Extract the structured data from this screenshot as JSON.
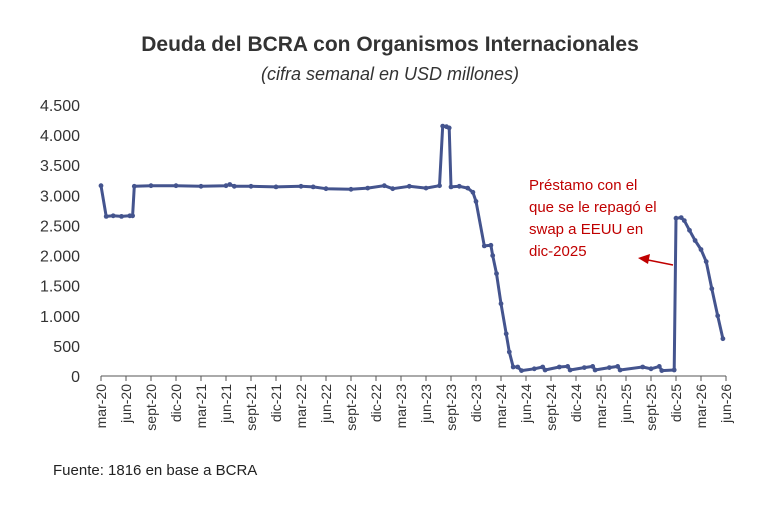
{
  "chart_data": {
    "type": "line",
    "title": "Deuda del BCRA con Organismos Internacionales",
    "subtitle": "(cifra semanal en USD millones)",
    "source": "Fuente: 1816 en base a BCRA",
    "ylim": [
      0,
      4500
    ],
    "yticks": [
      0,
      500,
      1000,
      1500,
      2000,
      2500,
      3000,
      3500,
      4000,
      4500
    ],
    "ytick_labels": [
      "0",
      "500",
      "1.000",
      "1.500",
      "2.000",
      "2.500",
      "3.000",
      "3.500",
      "4.000",
      "4.500"
    ],
    "xlim": [
      "2020-03",
      "2026-06"
    ],
    "xticks": [
      "2020-03",
      "2020-06",
      "2020-09",
      "2020-12",
      "2021-03",
      "2021-06",
      "2021-09",
      "2021-12",
      "2022-03",
      "2022-06",
      "2022-09",
      "2022-12",
      "2023-03",
      "2023-06",
      "2023-09",
      "2023-12",
      "2024-03",
      "2024-06",
      "2024-09",
      "2024-12",
      "2025-03",
      "2025-06",
      "2025-09",
      "2025-12",
      "2026-03",
      "2026-06"
    ],
    "xtick_labels": [
      "mar-20",
      "jun-20",
      "sept-20",
      "dic-20",
      "mar-21",
      "jun-21",
      "sept-21",
      "dic-21",
      "mar-22",
      "jun-22",
      "sept-22",
      "dic-22",
      "mar-23",
      "jun-23",
      "sept-23",
      "dic-23",
      "mar-24",
      "jun-24",
      "sept-24",
      "dic-24",
      "mar-25",
      "jun-25",
      "sept-25",
      "dic-25",
      "mar-26",
      "jun-26"
    ],
    "grid": false,
    "line_color": "#44548e",
    "annotation": {
      "lines": [
        "Préstamo con el",
        "que se le repagó el",
        "swap a EEUU en",
        "dic-2025"
      ],
      "color": "#c00000"
    },
    "series": [
      {
        "points": [
          [
            "2020-03-01",
            3160
          ],
          [
            "2020-03-20",
            2650
          ],
          [
            "2020-04-15",
            2660
          ],
          [
            "2020-05-15",
            2650
          ],
          [
            "2020-06-15",
            2660
          ],
          [
            "2020-06-25",
            2660
          ],
          [
            "2020-07-01",
            3150
          ],
          [
            "2020-09-01",
            3160
          ],
          [
            "2020-12-01",
            3160
          ],
          [
            "2021-03-01",
            3150
          ],
          [
            "2021-06-01",
            3160
          ],
          [
            "2021-06-15",
            3180
          ],
          [
            "2021-07-01",
            3150
          ],
          [
            "2021-09-01",
            3150
          ],
          [
            "2021-12-01",
            3140
          ],
          [
            "2022-03-01",
            3150
          ],
          [
            "2022-04-15",
            3140
          ],
          [
            "2022-06-01",
            3110
          ],
          [
            "2022-09-01",
            3100
          ],
          [
            "2022-11-01",
            3120
          ],
          [
            "2023-01-01",
            3160
          ],
          [
            "2023-02-01",
            3110
          ],
          [
            "2023-04-01",
            3150
          ],
          [
            "2023-06-01",
            3120
          ],
          [
            "2023-07-20",
            3160
          ],
          [
            "2023-08-01",
            4150
          ],
          [
            "2023-08-15",
            4140
          ],
          [
            "2023-08-25",
            4120
          ],
          [
            "2023-09-01",
            3140
          ],
          [
            "2023-10-01",
            3150
          ],
          [
            "2023-11-01",
            3120
          ],
          [
            "2023-11-20",
            3050
          ],
          [
            "2023-12-01",
            2900
          ],
          [
            "2024-01-01",
            2160
          ],
          [
            "2024-01-25",
            2170
          ],
          [
            "2024-02-01",
            2000
          ],
          [
            "2024-02-15",
            1700
          ],
          [
            "2024-03-01",
            1200
          ],
          [
            "2024-03-20",
            700
          ],
          [
            "2024-04-01",
            400
          ],
          [
            "2024-04-15",
            150
          ],
          [
            "2024-05-01",
            150
          ],
          [
            "2024-05-15",
            90
          ],
          [
            "2024-07-01",
            120
          ],
          [
            "2024-08-01",
            150
          ],
          [
            "2024-08-10",
            100
          ],
          [
            "2024-10-01",
            150
          ],
          [
            "2024-11-01",
            160
          ],
          [
            "2024-11-10",
            100
          ],
          [
            "2025-01-01",
            140
          ],
          [
            "2025-02-01",
            160
          ],
          [
            "2025-02-10",
            100
          ],
          [
            "2025-04-01",
            140
          ],
          [
            "2025-05-01",
            160
          ],
          [
            "2025-05-10",
            100
          ],
          [
            "2025-08-01",
            150
          ],
          [
            "2025-09-01",
            120
          ],
          [
            "2025-10-01",
            160
          ],
          [
            "2025-10-10",
            90
          ],
          [
            "2025-11-25",
            100
          ],
          [
            "2025-12-01",
            2620
          ],
          [
            "2025-12-20",
            2630
          ],
          [
            "2026-01-01",
            2580
          ],
          [
            "2026-01-20",
            2420
          ],
          [
            "2026-02-10",
            2250
          ],
          [
            "2026-03-01",
            2100
          ],
          [
            "2026-03-20",
            1900
          ],
          [
            "2026-04-10",
            1450
          ],
          [
            "2026-05-01",
            1000
          ],
          [
            "2026-05-20",
            620
          ]
        ]
      }
    ]
  }
}
